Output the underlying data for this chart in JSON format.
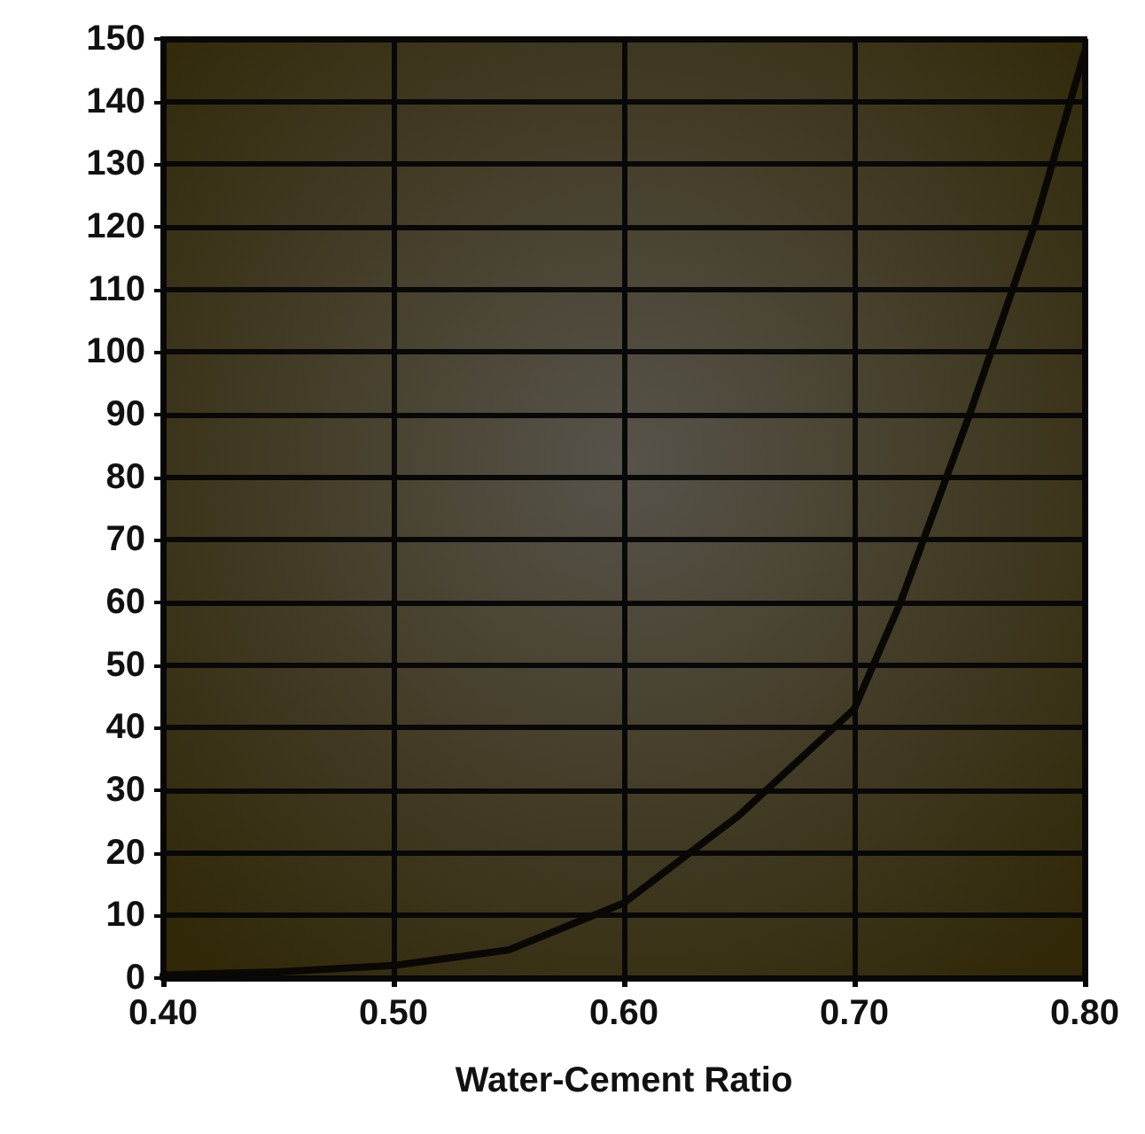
{
  "chart_data": {
    "type": "line",
    "xlabel": "Water-Cement Ratio",
    "series": [
      {
        "color": "#0a0805",
        "x": [
          0.4,
          0.45,
          0.5,
          0.55,
          0.6,
          0.65,
          0.7,
          0.72,
          0.75,
          0.778,
          0.8
        ],
        "values": [
          0.5,
          1,
          2,
          4.5,
          12,
          26,
          43,
          60,
          90,
          120,
          148
        ]
      }
    ],
    "xlim": [
      0.4,
      0.8
    ],
    "xticks": [
      {
        "value": 0.4,
        "label": "0.40"
      },
      {
        "value": 0.5,
        "label": "0.50"
      },
      {
        "value": 0.6,
        "label": "0.60"
      },
      {
        "value": 0.7,
        "label": "0.70"
      },
      {
        "value": 0.8,
        "label": "0.80"
      }
    ],
    "ylim": [
      0,
      150
    ],
    "yticks": [
      0,
      10,
      20,
      30,
      40,
      50,
      60,
      70,
      80,
      90,
      100,
      110,
      120,
      130,
      140,
      150
    ],
    "grid": true,
    "marker": "none",
    "line_style": "solid"
  }
}
